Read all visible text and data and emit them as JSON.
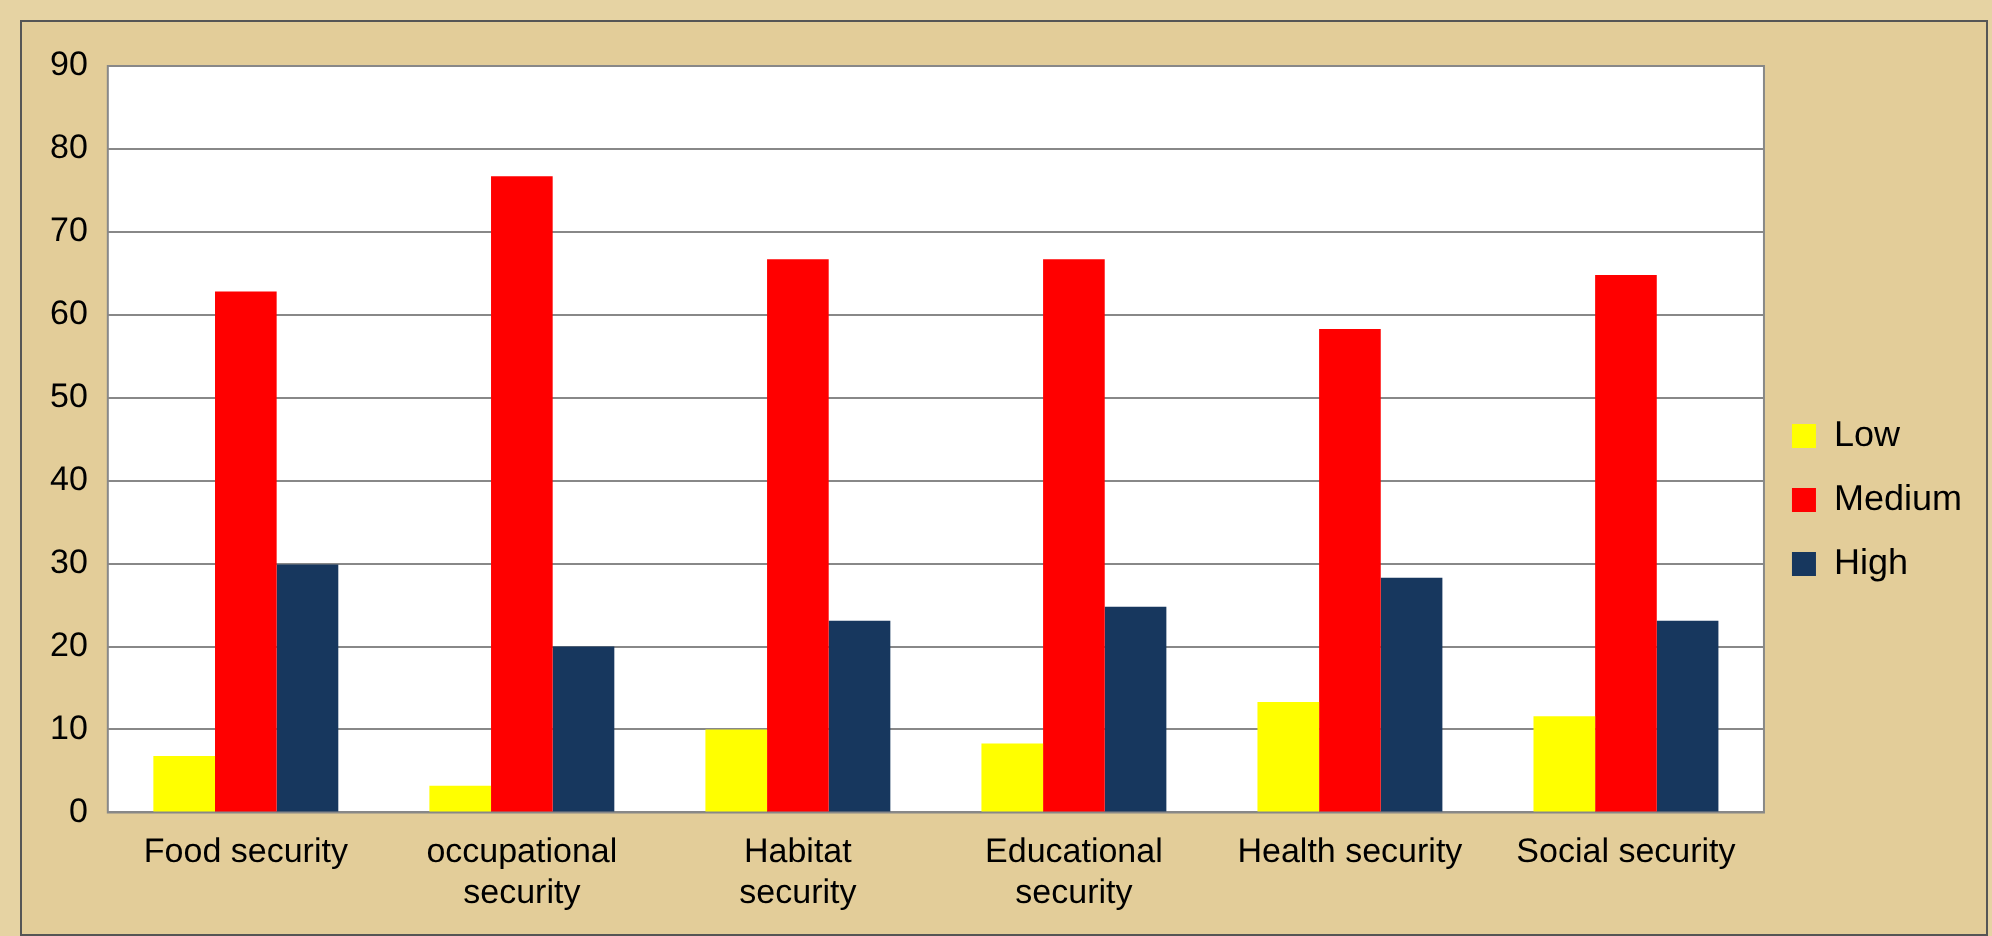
{
  "chart_data": {
    "type": "bar",
    "categories": [
      "Food security",
      "occupational security",
      "Habitat security",
      "Educational security",
      "Health security",
      "Social security"
    ],
    "series": [
      {
        "name": "Low",
        "color": "#ffff00",
        "values": [
          6.8,
          3.2,
          10,
          8.3,
          13.3,
          11.6
        ]
      },
      {
        "name": "Medium",
        "color": "#ff0000",
        "values": [
          62.8,
          76.7,
          66.7,
          66.7,
          58.3,
          64.8
        ]
      },
      {
        "name": "High",
        "color": "#17375e",
        "values": [
          29.9,
          20,
          23.1,
          24.8,
          28.3,
          23.1
        ]
      }
    ],
    "ylim": [
      0,
      90
    ],
    "yticks": [
      0,
      10,
      20,
      30,
      40,
      50,
      60,
      70,
      80,
      90
    ],
    "grid": "y",
    "legend": "right"
  }
}
